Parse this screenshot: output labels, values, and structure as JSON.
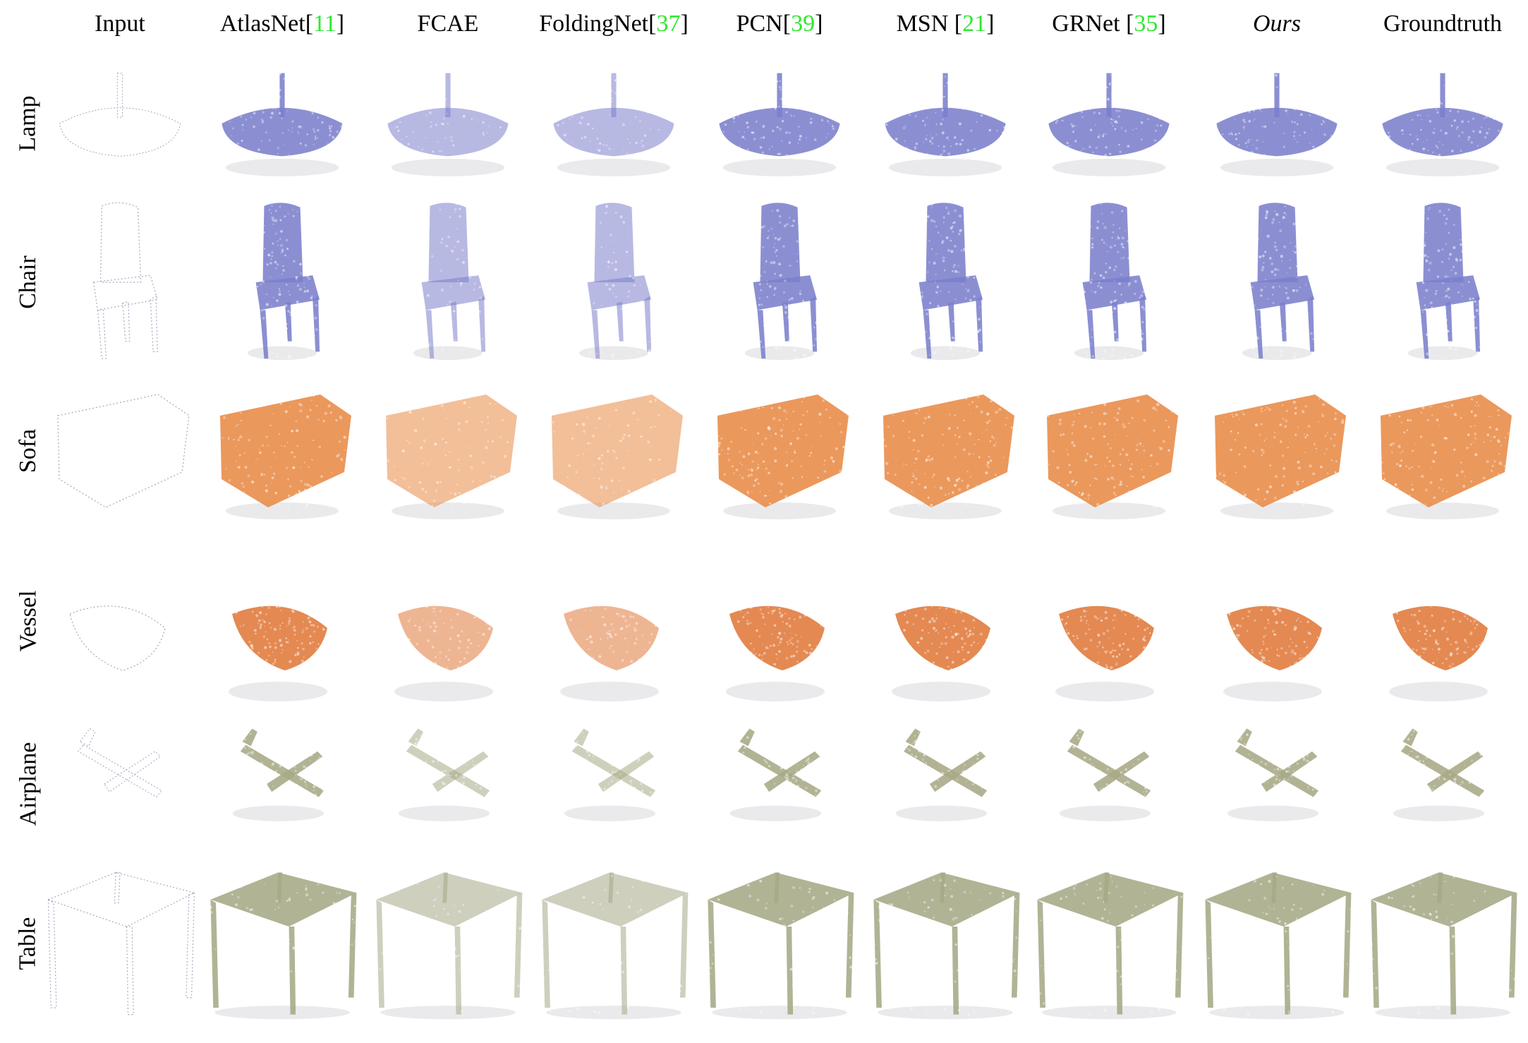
{
  "columns": [
    {
      "id": "input",
      "label": "Input",
      "ref": ""
    },
    {
      "id": "atlasnet",
      "label": "AtlasNet",
      "ref": "11",
      "open": "[",
      "close": "]"
    },
    {
      "id": "fcae",
      "label": "FCAE",
      "ref": ""
    },
    {
      "id": "foldingnet",
      "label": "FoldingNet",
      "ref": "37",
      "open": "[",
      "close": "]"
    },
    {
      "id": "pcn",
      "label": "PCN",
      "ref": "39",
      "open": "[",
      "close": "]"
    },
    {
      "id": "msn",
      "label": "MSN ",
      "ref": "21",
      "open": "[",
      "close": "]"
    },
    {
      "id": "grnet",
      "label": "GRNet ",
      "ref": "35",
      "open": "[",
      "close": "]"
    },
    {
      "id": "ours",
      "label": "Ours",
      "ref": "",
      "italic": true
    },
    {
      "id": "groundtruth",
      "label": "Groundtruth",
      "ref": ""
    }
  ],
  "rows": [
    {
      "id": "lamp",
      "label": "Lamp",
      "color": "#7b7fcc"
    },
    {
      "id": "chair",
      "label": "Chair",
      "color": "#7b7fcc"
    },
    {
      "id": "sofa",
      "label": "Sofa",
      "color": "#e88a45"
    },
    {
      "id": "vessel",
      "label": "Vessel",
      "color": "#e0793a"
    },
    {
      "id": "airplane",
      "label": "Airplane",
      "color": "#a7a985"
    },
    {
      "id": "table",
      "label": "Table",
      "color": "#a6a886"
    }
  ],
  "colors": {
    "reference_link": "#2ee82e",
    "input_point": "#9a9ab8"
  }
}
